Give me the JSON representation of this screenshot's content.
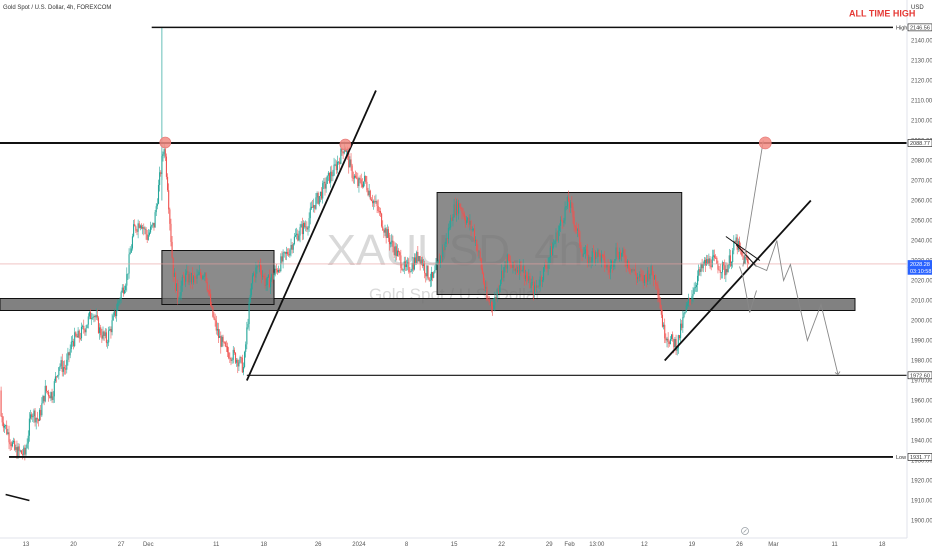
{
  "header": {
    "symbol_line": "Gold Spot / U.S. Dollar, 4h, FOREXCOM",
    "currency": "USD"
  },
  "watermark": {
    "ticker": "XAUUSD, 4h",
    "name": "Gold Spot / U.S. Dollar"
  },
  "annotations": {
    "all_time_high": "ALL TIME HIGH"
  },
  "chart_data": {
    "type": "candlestick",
    "y_range": [
      1895,
      2146.56
    ],
    "y_ticks": [
      1900,
      1910,
      1920,
      1930,
      1940,
      1950,
      1960,
      1970,
      1980,
      1990,
      2000,
      2010,
      2020,
      2030,
      2040,
      2050,
      2060,
      2070,
      2080,
      2090,
      2100,
      2110,
      2120,
      2130,
      2140
    ],
    "x_ticks": [
      {
        "label": "13",
        "day": 0
      },
      {
        "label": "20",
        "day": 7
      },
      {
        "label": "27",
        "day": 14
      },
      {
        "label": "Dec",
        "day": 18
      },
      {
        "label": "11",
        "day": 28
      },
      {
        "label": "18",
        "day": 35
      },
      {
        "label": "26",
        "day": 43
      },
      {
        "label": "2024",
        "day": 49
      },
      {
        "label": "8",
        "day": 56
      },
      {
        "label": "15",
        "day": 63
      },
      {
        "label": "22",
        "day": 70
      },
      {
        "label": "29",
        "day": 77
      },
      {
        "label": "Feb",
        "day": 80
      },
      {
        "label": "13:00",
        "day": 84
      },
      {
        "label": "12",
        "day": 91
      },
      {
        "label": "19",
        "day": 98
      },
      {
        "label": "26",
        "day": 105
      },
      {
        "label": "Mar",
        "day": 110
      },
      {
        "label": "11",
        "day": 119
      },
      {
        "label": "18",
        "day": 126
      }
    ],
    "price_labels": [
      {
        "label": "High",
        "value": "2146.56",
        "style": "high"
      },
      {
        "label": "",
        "value": "2088.77",
        "style": "black"
      },
      {
        "label": "",
        "value": "2028.28",
        "style": "blue"
      },
      {
        "label": "",
        "value": "03:10:58",
        "style": "blue"
      },
      {
        "label": "",
        "value": "1972.60",
        "style": "black"
      },
      {
        "label": "Low",
        "value": "1931.77",
        "style": "low"
      }
    ],
    "levels": {
      "all_time_high": 2146.56,
      "resistance": 2088.77,
      "last_price": 2028.28,
      "support": 1972.6,
      "low": 1931.77
    },
    "zones": [
      {
        "name": "support-zone",
        "day_start": -5,
        "day_end": 122,
        "top": 2011,
        "bottom": 2005
      },
      {
        "name": "december-range",
        "day_start": 20,
        "day_end": 36.5,
        "top": 2035,
        "bottom": 2008
      },
      {
        "name": "january-range",
        "day_start": 60.5,
        "day_end": 96.5,
        "top": 2064,
        "bottom": 2013
      }
    ],
    "trendlines": [
      {
        "name": "december-rally",
        "points": [
          [
            32.5,
            1970
          ],
          [
            51.5,
            2115
          ]
        ]
      },
      {
        "name": "february-support",
        "points": [
          [
            94,
            1980
          ],
          [
            115.5,
            2060
          ]
        ]
      },
      {
        "name": "flag-upper",
        "points": [
          [
            103,
            2042
          ],
          [
            108,
            2030
          ]
        ]
      },
      {
        "name": "flag-lower",
        "points": [
          [
            104.5,
            2038
          ],
          [
            107.5,
            2027
          ]
        ]
      },
      {
        "name": "far-left-line",
        "points": [
          [
            -3,
            1913
          ],
          [
            0.5,
            1910
          ]
        ]
      }
    ],
    "projections": [
      {
        "name": "bullish-path",
        "points": [
          [
            105.5,
            2027
          ],
          [
            108.5,
            2090
          ]
        ]
      },
      {
        "name": "bearish-path",
        "points": [
          [
            107,
            2028
          ],
          [
            109,
            2025
          ],
          [
            110.5,
            2040
          ],
          [
            111.5,
            2020
          ],
          [
            112.5,
            2028
          ],
          [
            115,
            1990
          ],
          [
            117,
            2008
          ],
          [
            119.5,
            1973
          ]
        ]
      },
      {
        "name": "bearish-wave",
        "points": [
          [
            105,
            2027
          ],
          [
            105.5,
            2022
          ],
          [
            106.5,
            2004
          ],
          [
            107.5,
            2015
          ]
        ]
      }
    ],
    "markers": [
      {
        "name": "dec-high-marker",
        "day": 20.5,
        "value": 2089
      },
      {
        "name": "dec-top-marker",
        "day": 47,
        "value": 2088
      },
      {
        "name": "target-marker",
        "day": 108.8,
        "value": 2088.77
      }
    ],
    "path": [
      [
        -5,
        1965
      ],
      [
        -3,
        1948
      ],
      [
        -1.5,
        1935
      ],
      [
        0,
        1933
      ],
      [
        1,
        1955
      ],
      [
        2,
        1950
      ],
      [
        3,
        1965
      ],
      [
        4,
        1963
      ],
      [
        5,
        1978
      ],
      [
        6,
        1976
      ],
      [
        7,
        1990
      ],
      [
        8,
        1992
      ],
      [
        9,
        1998
      ],
      [
        10,
        2005
      ],
      [
        11,
        1995
      ],
      [
        12,
        1990
      ],
      [
        13,
        2000
      ],
      [
        14,
        2012
      ],
      [
        15,
        2022
      ],
      [
        16,
        2045
      ],
      [
        17,
        2050
      ],
      [
        18,
        2042
      ],
      [
        19,
        2048
      ],
      [
        19.8,
        2070
      ],
      [
        20.5,
        2088
      ],
      [
        21,
        2068
      ],
      [
        21.8,
        2025
      ],
      [
        22.5,
        2012
      ],
      [
        23.5,
        2022
      ],
      [
        25,
        2020
      ],
      [
        26.5,
        2025
      ],
      [
        27.5,
        2004
      ],
      [
        28.5,
        1992
      ],
      [
        29.5,
        1985
      ],
      [
        30.5,
        1983
      ],
      [
        31.5,
        1980
      ],
      [
        32.2,
        1976
      ],
      [
        32.8,
        2000
      ],
      [
        33.5,
        2022
      ],
      [
        34.5,
        2028
      ],
      [
        35.5,
        2018
      ],
      [
        36.5,
        2022
      ],
      [
        37.5,
        2028
      ],
      [
        38.5,
        2033
      ],
      [
        39.5,
        2040
      ],
      [
        40.5,
        2045
      ],
      [
        41.5,
        2048
      ],
      [
        42.5,
        2058
      ],
      [
        43.5,
        2063
      ],
      [
        44.5,
        2070
      ],
      [
        45.5,
        2075
      ],
      [
        46.5,
        2083
      ],
      [
        47,
        2088
      ],
      [
        48,
        2075
      ],
      [
        49,
        2068
      ],
      [
        50,
        2070
      ],
      [
        51,
        2062
      ],
      [
        52,
        2055
      ],
      [
        53,
        2045
      ],
      [
        54,
        2038
      ],
      [
        55,
        2032
      ],
      [
        56,
        2025
      ],
      [
        57,
        2028
      ],
      [
        58,
        2033
      ],
      [
        59,
        2025
      ],
      [
        60,
        2020
      ],
      [
        61,
        2030
      ],
      [
        62,
        2040
      ],
      [
        63,
        2055
      ],
      [
        64,
        2058
      ],
      [
        65,
        2050
      ],
      [
        66,
        2045
      ],
      [
        67,
        2030
      ],
      [
        68,
        2010
      ],
      [
        69,
        2008
      ],
      [
        70,
        2022
      ],
      [
        71,
        2030
      ],
      [
        72,
        2025
      ],
      [
        73,
        2028
      ],
      [
        74,
        2020
      ],
      [
        75,
        2015
      ],
      [
        76,
        2022
      ],
      [
        77,
        2030
      ],
      [
        78,
        2040
      ],
      [
        79,
        2050
      ],
      [
        80,
        2060
      ],
      [
        81,
        2048
      ],
      [
        82,
        2035
      ],
      [
        83,
        2030
      ],
      [
        84,
        2035
      ],
      [
        85,
        2030
      ],
      [
        86,
        2025
      ],
      [
        87,
        2035
      ],
      [
        88,
        2032
      ],
      [
        89,
        2028
      ],
      [
        90,
        2022
      ],
      [
        91,
        2020
      ],
      [
        92,
        2025
      ],
      [
        93,
        2020
      ],
      [
        94,
        1995
      ],
      [
        95,
        1990
      ],
      [
        96,
        1988
      ],
      [
        97,
        2002
      ],
      [
        98,
        2012
      ],
      [
        99,
        2022
      ],
      [
        100,
        2028
      ],
      [
        101,
        2030
      ],
      [
        102,
        2028
      ],
      [
        103,
        2025
      ],
      [
        104,
        2032
      ],
      [
        104.6,
        2040
      ],
      [
        105.5,
        2032
      ],
      [
        106.5,
        2028
      ]
    ],
    "spike": {
      "day": 20,
      "high": 2146.56,
      "low": 2060
    }
  }
}
